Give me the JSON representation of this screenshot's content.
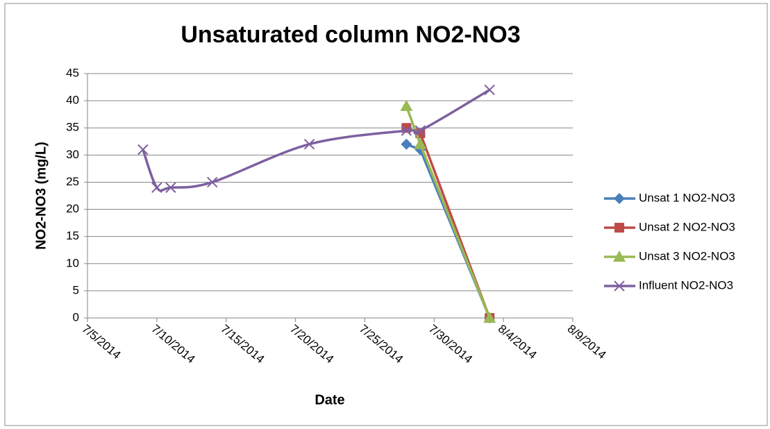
{
  "chart_data": {
    "type": "line",
    "title": "Unsaturated column   NO2-NO3",
    "x_label": "Date",
    "y_label": "NO2-NO3 (mg/L)",
    "xlim": [
      "7/5/2014",
      "8/9/2014"
    ],
    "xticks": [
      "7/5/2014",
      "7/10/2014",
      "7/15/2014",
      "7/20/2014",
      "7/25/2014",
      "7/30/2014",
      "8/4/2014",
      "8/9/2014"
    ],
    "ylim": [
      0,
      45
    ],
    "yticks": [
      0,
      5,
      10,
      15,
      20,
      25,
      30,
      35,
      40,
      45
    ],
    "grid": true,
    "legend": "right",
    "series": [
      {
        "name": "Unsat 1 NO2-NO3",
        "color": "#4a7ebb",
        "marker": "diamond",
        "smooth": false,
        "x": [
          "7/28/2014",
          "7/29/2014",
          "8/3/2014"
        ],
        "values": [
          32,
          31,
          0
        ]
      },
      {
        "name": "Unsat 2 NO2-NO3",
        "color": "#be4b48",
        "marker": "square",
        "smooth": false,
        "x": [
          "7/28/2014",
          "7/29/2014",
          "8/3/2014"
        ],
        "values": [
          35,
          34,
          0
        ]
      },
      {
        "name": "Unsat 3 NO2-NO3",
        "color": "#98b954",
        "marker": "triangle",
        "smooth": false,
        "x": [
          "7/28/2014",
          "7/29/2014",
          "8/3/2014"
        ],
        "values": [
          39,
          32,
          0
        ]
      },
      {
        "name": "Influent NO2-NO3",
        "color": "#7d60a0",
        "marker": "x",
        "smooth": true,
        "x": [
          "7/9/2014",
          "7/10/2014",
          "7/11/2014",
          "7/14/2014",
          "7/21/2014",
          "7/28/2014",
          "7/29/2014",
          "8/3/2014"
        ],
        "values": [
          31,
          24,
          24,
          25,
          32,
          34.5,
          34.5,
          42
        ]
      }
    ]
  }
}
